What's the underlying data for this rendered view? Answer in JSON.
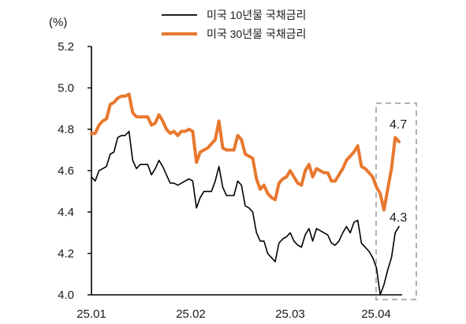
{
  "chart_data": {
    "type": "line",
    "unit_label": "(%)",
    "x_tick_labels": [
      "25.01",
      "25.02",
      "25.03",
      "25.04"
    ],
    "ylim": [
      4.0,
      5.2
    ],
    "y_ticks": [
      "4.0",
      "4.2",
      "4.4",
      "4.6",
      "4.8",
      "5.0",
      "5.2"
    ],
    "grid": false,
    "legend_position": "top",
    "series": [
      {
        "name": "미국 10년물 국채금리",
        "color": "#000000",
        "values": [
          4.57,
          4.55,
          4.6,
          4.61,
          4.62,
          4.68,
          4.69,
          4.76,
          4.77,
          4.77,
          4.79,
          4.65,
          4.61,
          4.63,
          4.63,
          4.63,
          4.58,
          4.61,
          4.65,
          4.62,
          4.58,
          4.54,
          4.54,
          4.53,
          4.54,
          4.55,
          4.56,
          4.55,
          4.42,
          4.47,
          4.5,
          4.5,
          4.5,
          4.55,
          4.62,
          4.52,
          4.48,
          4.48,
          4.48,
          4.55,
          4.53,
          4.43,
          4.42,
          4.4,
          4.3,
          4.26,
          4.26,
          4.2,
          4.18,
          4.16,
          4.25,
          4.27,
          4.28,
          4.3,
          4.26,
          4.24,
          4.23,
          4.29,
          4.32,
          4.26,
          4.32,
          4.31,
          4.3,
          4.29,
          4.25,
          4.24,
          4.26,
          4.3,
          4.33,
          4.3,
          4.35,
          4.36,
          4.25,
          4.23,
          4.21,
          4.18,
          4.13,
          4.0,
          4.05,
          4.12,
          4.18,
          4.3,
          4.33
        ]
      },
      {
        "name": "미국 30년물 국채금리",
        "color": "#e8782e",
        "values": [
          4.78,
          4.78,
          4.82,
          4.84,
          4.85,
          4.92,
          4.93,
          4.95,
          4.96,
          4.96,
          4.97,
          4.88,
          4.86,
          4.86,
          4.86,
          4.86,
          4.82,
          4.83,
          4.87,
          4.84,
          4.8,
          4.78,
          4.79,
          4.77,
          4.79,
          4.79,
          4.8,
          4.79,
          4.64,
          4.69,
          4.7,
          4.71,
          4.73,
          4.75,
          4.84,
          4.71,
          4.7,
          4.7,
          4.7,
          4.77,
          4.75,
          4.68,
          4.67,
          4.66,
          4.56,
          4.51,
          4.53,
          4.49,
          4.47,
          4.46,
          4.54,
          4.56,
          4.57,
          4.6,
          4.57,
          4.54,
          4.53,
          4.6,
          4.63,
          4.57,
          4.61,
          4.6,
          4.59,
          4.59,
          4.55,
          4.55,
          4.58,
          4.61,
          4.65,
          4.67,
          4.69,
          4.72,
          4.62,
          4.61,
          4.59,
          4.57,
          4.52,
          4.49,
          4.41,
          4.51,
          4.61,
          4.76,
          4.74
        ]
      }
    ],
    "annotations": [
      {
        "text": "4.7",
        "series": "미국 30년물 국채금리"
      },
      {
        "text": "4.3",
        "series": "미국 10년물 국채금리"
      }
    ],
    "highlight": {
      "style": "dashed-box",
      "color": "#b3b3b3"
    }
  }
}
